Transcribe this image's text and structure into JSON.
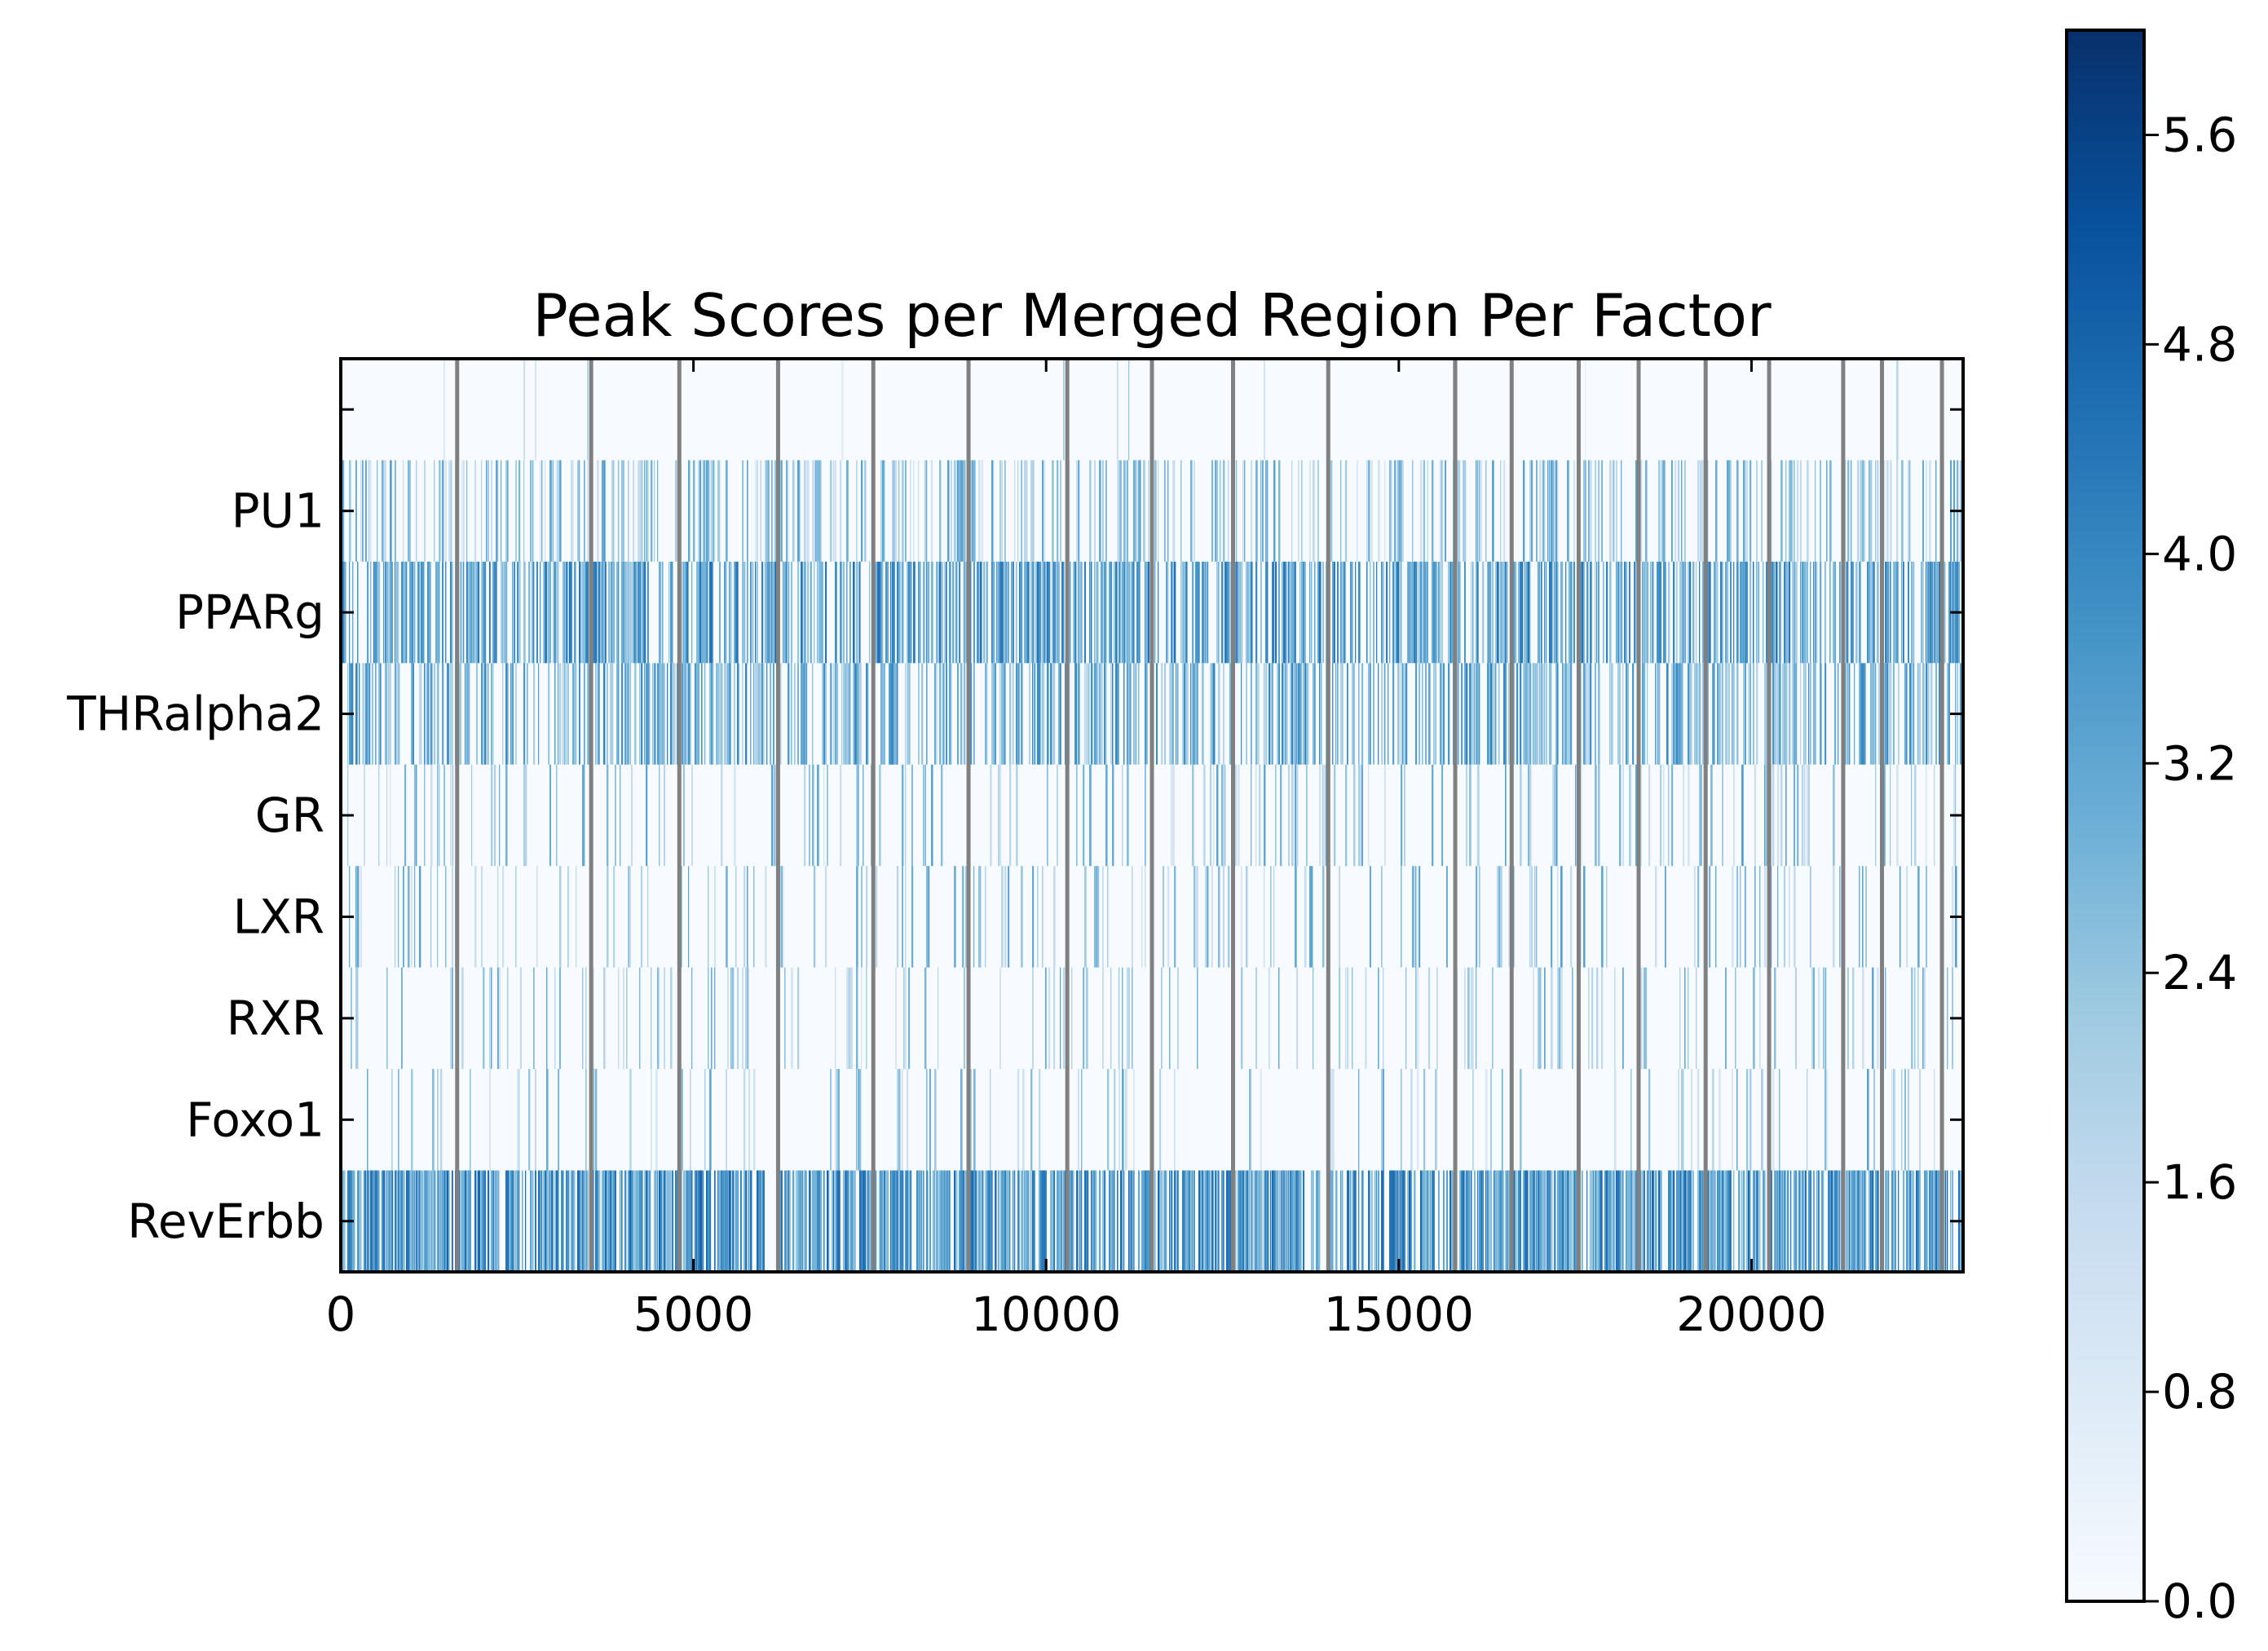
{
  "chart_data": {
    "type": "heatmap",
    "title": "Peak Scores per Merged Region Per Factor",
    "xlabel": "",
    "ylabel": "",
    "xlim": [
      0,
      23000
    ],
    "x_ticks": [
      "0",
      "5000",
      "10000",
      "15000",
      "20000"
    ],
    "x_tick_values": [
      0,
      5000,
      10000,
      15000,
      20000
    ],
    "rows": [
      "",
      "PU1",
      "PPARg",
      "THRalpha2",
      "GR",
      "LXR",
      "RXR",
      "Foxo1",
      "RevErbb"
    ],
    "row_density": [
      0.01,
      0.38,
      0.62,
      0.52,
      0.2,
      0.16,
      0.17,
      0.1,
      0.78
    ],
    "row_mean_score": [
      1.6,
      2.2,
      3.3,
      2.9,
      2.2,
      2.2,
      2.1,
      2.1,
      3.6
    ],
    "chromosome_boundaries": [
      1650,
      3550,
      4800,
      6200,
      7550,
      8900,
      10300,
      11500,
      12650,
      14000,
      15800,
      16600,
      17550,
      18400,
      19350,
      20250,
      21300,
      21850,
      22700
    ],
    "colormap": "Blues",
    "colorbar": {
      "min": 0.0,
      "max": 6.0,
      "ticks": [
        "0.0",
        "0.8",
        "1.6",
        "2.4",
        "3.2",
        "4.0",
        "4.8",
        "5.6"
      ],
      "tick_values": [
        0.0,
        0.8,
        1.6,
        2.4,
        3.2,
        4.0,
        4.8,
        5.6
      ]
    },
    "grid": false,
    "boundary_color": "#808080"
  }
}
